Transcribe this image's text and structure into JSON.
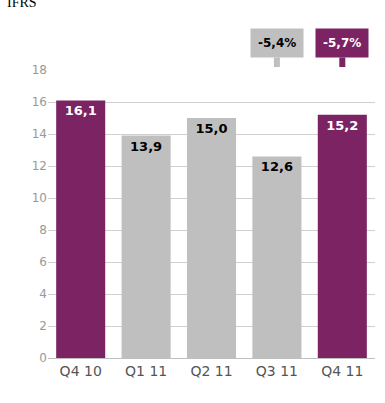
{
  "chart_data": {
    "type": "bar",
    "y_label": "IFRS",
    "categories": [
      "Q4 10",
      "Q1 11",
      "Q2 11",
      "Q3 11",
      "Q4 11"
    ],
    "values": [
      16.1,
      13.9,
      15.0,
      12.6,
      15.2
    ],
    "value_labels": [
      "16,1",
      "13,9",
      "15,0",
      "12,6",
      "15,2"
    ],
    "colors": [
      "#7b2363",
      "#bfbfbf",
      "#bfbfbf",
      "#bfbfbf",
      "#7b2363"
    ],
    "ylim": [
      0,
      18
    ],
    "yticks": [
      0,
      2,
      4,
      6,
      8,
      10,
      12,
      14,
      16,
      18
    ],
    "grid": true,
    "data_labels": true,
    "annotations": [
      {
        "text": "-5,4%",
        "category": "Q3 11",
        "color": "#bfbfbf"
      },
      {
        "text": "-5,7%",
        "category": "Q4 11",
        "color": "#7b2363"
      }
    ]
  }
}
